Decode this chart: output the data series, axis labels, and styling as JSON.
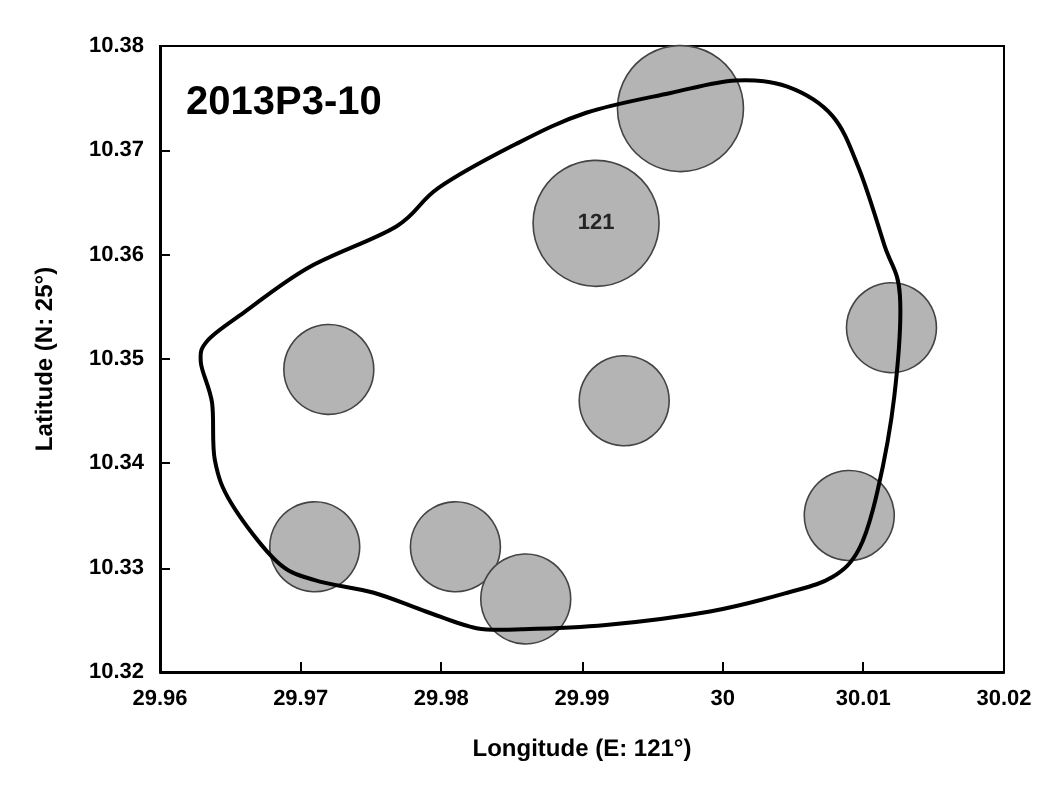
{
  "chart_data": {
    "type": "bubble",
    "title": "2013P3-10",
    "xlabel": "Longitude (E: 121°)",
    "ylabel": "Latitude (N: 25°)",
    "xlim": [
      29.96,
      30.02
    ],
    "xticks": [
      29.96,
      29.97,
      29.98,
      29.99,
      30,
      30.01,
      30.02
    ],
    "ylim": [
      10.32,
      10.38
    ],
    "yticks": [
      10.32,
      10.33,
      10.34,
      10.35,
      10.36,
      10.37,
      10.38
    ],
    "grid": false,
    "annotations": [
      {
        "text": "121",
        "x": 29.991,
        "y": 10.363
      }
    ],
    "series": [
      {
        "type": "bubble",
        "color": "#b4b4b4",
        "x": [
          29.997,
          29.991,
          30.012,
          29.972,
          29.993,
          30.009,
          29.971,
          29.981,
          29.986
        ],
        "values": [
          10.374,
          10.363,
          10.353,
          10.349,
          10.346,
          10.335,
          10.332,
          10.332,
          10.327
        ],
        "sizes": [
          1,
          1,
          0.51,
          0.51,
          0.51,
          0.51,
          0.51,
          0.51,
          0.51
        ]
      }
    ]
  }
}
